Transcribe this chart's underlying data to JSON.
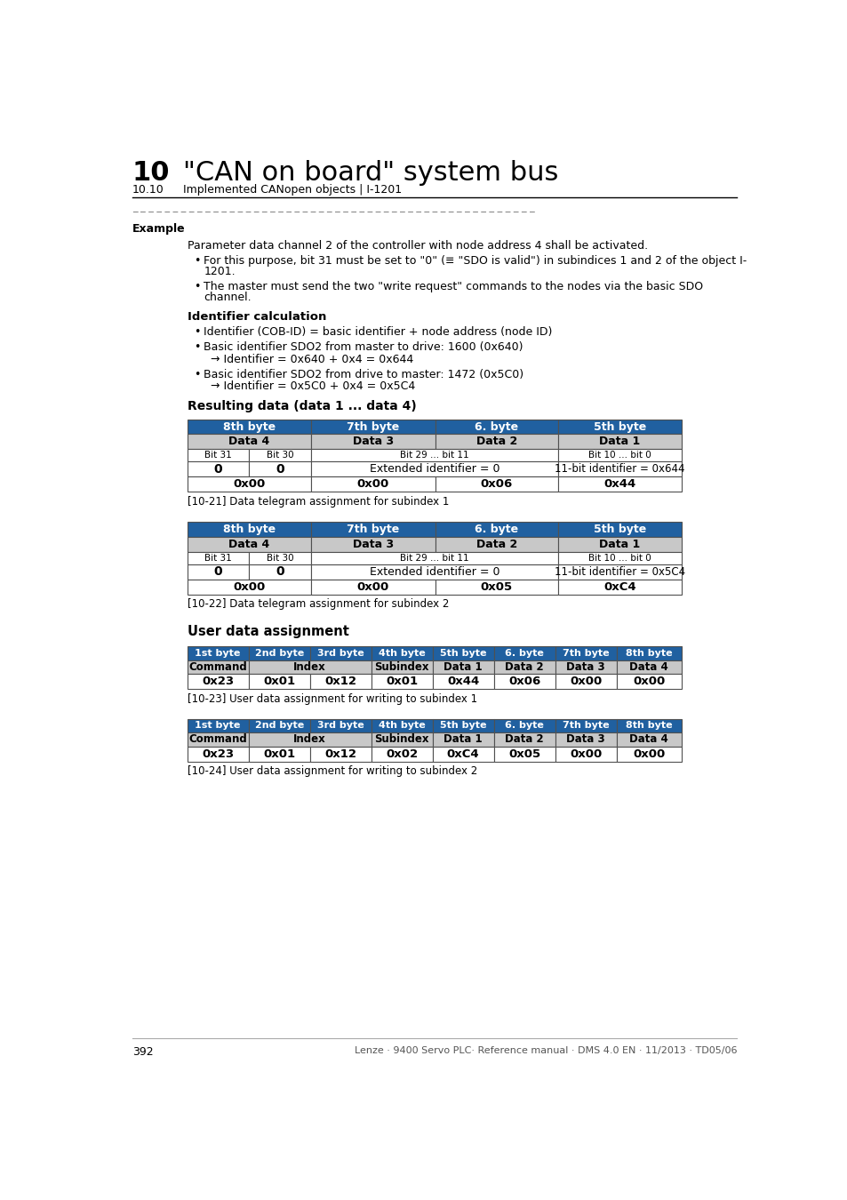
{
  "title_number": "10",
  "title_text": "\"CAN on board\" system bus",
  "subtitle_prefix": "10.10",
  "subtitle_text": "Implemented CANopen objects | I-1201",
  "header_bg": "#2060a0",
  "header_text_color": "#ffffff",
  "subheader_bg": "#c8c8c8",
  "row_bg": "#ffffff",
  "dark_border": "#505050",
  "page_number": "392",
  "footer_text": "Lenze · 9400 Servo PLC· Reference manual · DMS 4.0 EN · 11/2013 · TD05/06",
  "separator_color": "#666666",
  "table1_headers": [
    "8th byte",
    "7th byte",
    "6. byte",
    "5th byte"
  ],
  "table1_row2": [
    "Data 4",
    "Data 3",
    "Data 2",
    "Data 1"
  ],
  "table1_row4_right_1": "11-bit identifier = 0x644",
  "table1_row5_1": [
    "0x00",
    "0x00",
    "0x06",
    "0x44"
  ],
  "table1_caption": "[10-21] Data telegram assignment for subindex 1",
  "table1_row4_right_2": "11-bit identifier = 0x5C4",
  "table1_row5_2": [
    "0x00",
    "0x00",
    "0x05",
    "0xC4"
  ],
  "table2_caption": "[10-22] Data telegram assignment for subindex 2",
  "user_data_title": "User data assignment",
  "table3_headers": [
    "1st byte",
    "2nd byte",
    "3rd byte",
    "4th byte",
    "5th byte",
    "6. byte",
    "7th byte",
    "8th byte"
  ],
  "table3_row2_spans": [
    "Command",
    "Index",
    "Subindex",
    "Data 1",
    "Data 2",
    "Data 3",
    "Data 4"
  ],
  "table3_row3_1": [
    "0x23",
    "0x01",
    "0x12",
    "0x01",
    "0x44",
    "0x06",
    "0x00",
    "0x00"
  ],
  "table3_caption": "[10-23] User data assignment for writing to subindex 1",
  "table3_row3_2": [
    "0x23",
    "0x01",
    "0x12",
    "0x02",
    "0xC4",
    "0x05",
    "0x00",
    "0x00"
  ],
  "table4_caption": "[10-24] User data assignment for writing to subindex 2"
}
